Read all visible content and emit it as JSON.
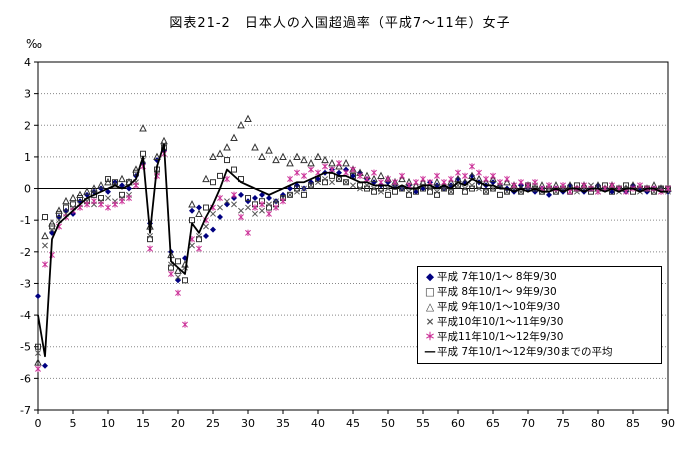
{
  "legend": {
    "items": [
      {
        "marker": "◆",
        "color": "#000080",
        "label": "平成 7年10/1～ 8年9/30"
      },
      {
        "marker": "□",
        "color": "#333333",
        "label": "平成 8年10/1～ 9年9/30"
      },
      {
        "marker": "△",
        "color": "#333333",
        "label": "平成 9年10/1～10年9/30"
      },
      {
        "marker": "×",
        "color": "#555555",
        "label": "平成10年10/1～11年9/30"
      },
      {
        "marker": "＊",
        "color": "#cc3399",
        "label": "平成11年10/1～12年9/30"
      },
      {
        "marker": "―",
        "color": "#000000",
        "label": "平成 7年10/1～12年9/30までの平均"
      }
    ]
  },
  "chart_data": {
    "type": "scatter",
    "title": "図表21-2　日本人の入国超過率（平成7～11年）女子",
    "xlabel": "",
    "ylabel": "‰",
    "x_min": 0,
    "x_max": 90,
    "x_step": 1,
    "y_range": [
      -7,
      4
    ],
    "x_ticks": [
      0,
      5,
      10,
      15,
      20,
      25,
      30,
      35,
      40,
      45,
      50,
      55,
      60,
      65,
      70,
      75,
      80,
      85,
      90
    ],
    "y_ticks": [
      4,
      3,
      2,
      1,
      0,
      -1,
      -2,
      -3,
      -4,
      -5,
      -6,
      -7
    ],
    "grid": "horizontal-dotted",
    "legend_position": "inside-lower-right",
    "note": "x values are ages 0..90, one value per array index",
    "series": [
      {
        "name": "平成 7年10/1～ 8年9/30",
        "marker": "diamond",
        "color": "#000080",
        "values": [
          -3.4,
          -5.6,
          -1.4,
          -0.9,
          -0.7,
          -0.8,
          -0.4,
          -0.2,
          -0.1,
          0.0,
          -0.1,
          0.2,
          0.1,
          0.0,
          0.4,
          0.8,
          -1.1,
          0.9,
          1.2,
          -2.0,
          -2.9,
          -2.2,
          -0.7,
          -0.6,
          -1.5,
          -1.3,
          -0.9,
          -0.5,
          -0.3,
          -0.2,
          -0.4,
          -0.3,
          -0.2,
          -0.3,
          -0.4,
          -0.2,
          0.0,
          0.1,
          0.0,
          0.2,
          0.3,
          0.5,
          0.6,
          0.5,
          0.6,
          0.4,
          0.5,
          0.3,
          0.2,
          0.1,
          0.2,
          0.1,
          0.0,
          0.1,
          -0.1,
          0.0,
          0.2,
          0.1,
          0.0,
          0.1,
          0.3,
          0.2,
          0.4,
          0.2,
          0.1,
          0.2,
          0.1,
          0.0,
          -0.1,
          0.1,
          0.0,
          -0.1,
          0.0,
          -0.2,
          0.0,
          -0.1,
          0.1,
          0.0,
          -0.1,
          0.0,
          0.1,
          0.0,
          -0.1,
          0.0,
          -0.1,
          0.1,
          0.0,
          -0.1,
          0.0,
          0.0,
          -0.1
        ]
      },
      {
        "name": "平成 8年10/1～ 9年9/30",
        "marker": "square",
        "color": "#333333",
        "values": [
          -5.0,
          -0.9,
          -1.2,
          -0.8,
          -0.6,
          -0.5,
          -0.3,
          -0.4,
          -0.2,
          -0.3,
          0.3,
          0.2,
          -0.2,
          0.2,
          0.5,
          1.1,
          -1.6,
          0.6,
          1.3,
          -2.5,
          -2.3,
          -2.9,
          -1.0,
          -1.6,
          -0.6,
          0.2,
          0.4,
          0.9,
          0.6,
          0.3,
          -0.3,
          -0.5,
          -0.4,
          -0.6,
          -0.5,
          -0.3,
          -0.2,
          0.0,
          -0.2,
          0.1,
          0.3,
          0.2,
          0.4,
          0.3,
          0.2,
          0.4,
          0.1,
          0.0,
          -0.1,
          0.0,
          -0.2,
          -0.1,
          0.0,
          -0.2,
          -0.1,
          0.0,
          -0.1,
          -0.2,
          0.0,
          -0.1,
          0.1,
          -0.1,
          0.0,
          0.1,
          -0.1,
          0.0,
          -0.2,
          -0.1,
          0.0,
          -0.1,
          0.1,
          0.0,
          -0.1,
          0.0,
          -0.1,
          0.0,
          -0.1,
          0.1,
          0.0,
          -0.1,
          0.0,
          0.1,
          -0.1,
          0.0,
          0.1,
          -0.1,
          0.0,
          0.0,
          -0.1,
          0.0,
          0.0
        ]
      },
      {
        "name": "平成 9年10/1～10年9/30",
        "marker": "triangle",
        "color": "#333333",
        "values": [
          -5.5,
          -1.5,
          -1.1,
          -0.7,
          -0.4,
          -0.3,
          -0.2,
          -0.1,
          0.0,
          0.1,
          0.2,
          0.1,
          0.3,
          0.2,
          0.6,
          1.9,
          -1.2,
          1.0,
          1.5,
          -2.1,
          -2.6,
          -2.4,
          -0.5,
          -0.8,
          0.3,
          1.0,
          1.1,
          1.3,
          1.6,
          2.0,
          2.2,
          1.3,
          1.0,
          1.2,
          0.9,
          1.0,
          0.8,
          1.0,
          0.9,
          0.8,
          1.0,
          0.9,
          0.8,
          0.7,
          0.8,
          0.6,
          0.5,
          0.4,
          0.3,
          0.4,
          0.3,
          0.2,
          0.3,
          0.2,
          0.1,
          0.2,
          0.1,
          0.2,
          0.1,
          0.2,
          0.3,
          0.2,
          0.4,
          0.3,
          0.2,
          0.3,
          0.1,
          0.2,
          0.1,
          0.0,
          0.1,
          0.0,
          0.1,
          0.0,
          0.1,
          0.0,
          0.1,
          0.0,
          0.1,
          0.0,
          0.1,
          0.0,
          0.1,
          0.0,
          0.0,
          0.1,
          0.0,
          0.0,
          0.1,
          0.0,
          0.0
        ]
      },
      {
        "name": "平成10年10/1～11年9/30",
        "marker": "x",
        "color": "#555555",
        "values": [
          -5.2,
          -1.8,
          -1.3,
          -1.0,
          -0.8,
          -0.6,
          -0.5,
          -0.4,
          -0.5,
          -0.4,
          -0.3,
          -0.4,
          -0.3,
          -0.2,
          0.2,
          0.9,
          -1.5,
          0.5,
          1.4,
          -2.4,
          -2.8,
          -2.5,
          -1.8,
          -1.5,
          -1.2,
          -0.8,
          -0.6,
          -0.4,
          -0.5,
          -0.7,
          -0.6,
          -0.8,
          -0.7,
          -0.5,
          -0.4,
          -0.3,
          -0.2,
          -0.1,
          0.0,
          0.1,
          0.2,
          0.3,
          0.2,
          0.3,
          0.2,
          0.1,
          0.0,
          0.1,
          0.0,
          -0.1,
          0.0,
          0.1,
          0.0,
          -0.1,
          0.0,
          0.1,
          0.0,
          -0.1,
          0.0,
          -0.1,
          0.1,
          0.0,
          0.1,
          0.0,
          -0.1,
          0.0,
          0.1,
          -0.1,
          0.0,
          -0.1,
          0.0,
          0.1,
          -0.1,
          0.0,
          -0.1,
          0.0,
          0.0,
          -0.1,
          0.0,
          0.1,
          -0.1,
          0.0,
          0.0,
          -0.1,
          0.0,
          0.0,
          -0.1,
          0.0,
          -0.1,
          0.0,
          -0.1
        ]
      },
      {
        "name": "平成11年10/1～12年9/30",
        "marker": "asterisk",
        "color": "#cc3399",
        "values": [
          -5.7,
          -2.4,
          -2.1,
          -1.2,
          -0.9,
          -0.7,
          -0.6,
          -0.5,
          -0.4,
          -0.5,
          -0.6,
          -0.5,
          -0.4,
          -0.3,
          0.1,
          0.7,
          -1.9,
          0.4,
          1.1,
          -2.7,
          -3.3,
          -4.3,
          -1.6,
          -1.9,
          -1.0,
          -0.6,
          -0.3,
          0.3,
          -0.2,
          -0.9,
          -1.4,
          -0.6,
          -0.5,
          -0.8,
          -0.6,
          -0.4,
          0.3,
          0.5,
          0.4,
          0.6,
          0.5,
          0.7,
          0.6,
          0.8,
          0.5,
          0.6,
          0.4,
          0.3,
          0.5,
          0.2,
          0.3,
          0.2,
          0.4,
          0.1,
          0.2,
          0.3,
          0.2,
          0.4,
          0.2,
          0.3,
          0.5,
          0.4,
          0.7,
          0.5,
          0.3,
          0.4,
          0.2,
          0.3,
          0.1,
          0.2,
          0.1,
          0.2,
          0.0,
          0.1,
          0.0,
          0.1,
          -0.1,
          0.0,
          0.1,
          0.0,
          -0.1,
          0.0,
          0.1,
          0.0,
          -0.1,
          0.0,
          0.1,
          0.0,
          0.0,
          -0.1,
          0.0
        ]
      },
      {
        "name": "平成 7年10/1～12年9/30までの平均",
        "marker": "line",
        "color": "#000000",
        "values": [
          -4.0,
          -5.3,
          -1.6,
          -1.1,
          -0.9,
          -0.7,
          -0.5,
          -0.3,
          -0.2,
          -0.1,
          0.0,
          0.1,
          0.0,
          0.1,
          0.3,
          1.0,
          -1.4,
          0.7,
          1.4,
          -2.3,
          -2.5,
          -2.7,
          -1.1,
          -1.4,
          -0.9,
          -0.5,
          0.0,
          0.6,
          0.4,
          0.2,
          0.1,
          0.0,
          -0.1,
          -0.2,
          -0.1,
          0.0,
          0.1,
          0.2,
          0.2,
          0.3,
          0.4,
          0.5,
          0.5,
          0.4,
          0.4,
          0.3,
          0.2,
          0.2,
          0.1,
          0.1,
          0.1,
          0.0,
          0.1,
          0.0,
          0.0,
          0.1,
          0.1,
          0.0,
          0.1,
          0.0,
          0.2,
          0.1,
          0.3,
          0.2,
          0.1,
          0.1,
          0.0,
          0.0,
          -0.1,
          0.0,
          -0.1,
          0.0,
          -0.1,
          -0.1,
          0.0,
          -0.1,
          0.0,
          0.0,
          -0.1,
          0.0,
          0.0,
          -0.1,
          0.0,
          -0.1,
          0.0,
          0.0,
          -0.1,
          0.0,
          0.0,
          -0.1,
          -0.1
        ]
      }
    ]
  }
}
